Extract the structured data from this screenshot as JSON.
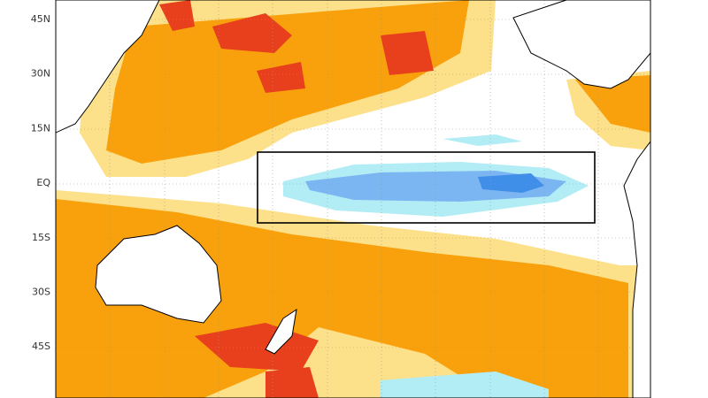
{
  "map": {
    "lat_labels": [
      "45N",
      "30N",
      "15N",
      "EQ",
      "15S",
      "30S",
      "45S"
    ]
  }
}
